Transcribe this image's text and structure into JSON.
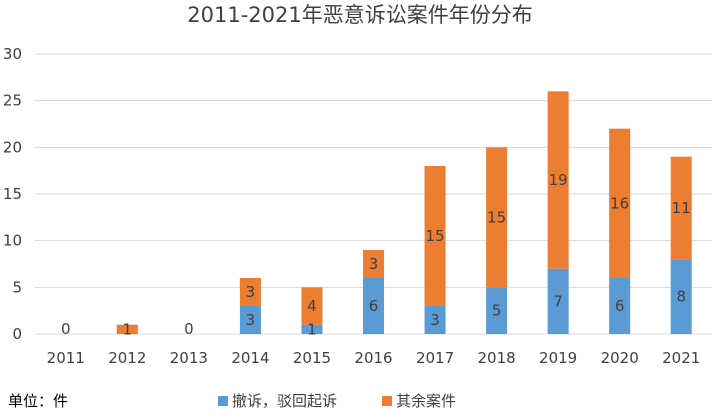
{
  "chart_data": {
    "type": "bar",
    "stacked": true,
    "title": "2011-2021年恶意诉讼案件年份分布",
    "unit_note": "单位：件",
    "categories": [
      "2011",
      "2012",
      "2013",
      "2014",
      "2015",
      "2016",
      "2017",
      "2018",
      "2019",
      "2020",
      "2021"
    ],
    "series": [
      {
        "name": "撤诉，驳回起诉",
        "color": "#5b9bd5",
        "values": [
          0,
          0,
          0,
          3,
          1,
          6,
          3,
          5,
          7,
          6,
          8
        ]
      },
      {
        "name": "其余案件",
        "color": "#ed7d31",
        "values": [
          0,
          1,
          0,
          3,
          4,
          3,
          15,
          15,
          19,
          16,
          11
        ]
      }
    ],
    "data_labels": {
      "series0": [
        "0",
        "",
        "0",
        "3",
        "1",
        "6",
        "3",
        "5",
        "7",
        "6",
        "8"
      ],
      "series1": [
        "",
        "1",
        "",
        "3",
        "4",
        "3",
        "15",
        "15",
        "19",
        "16",
        "11"
      ]
    },
    "ylim": [
      0,
      30
    ],
    "yticks": [
      0,
      5,
      10,
      15,
      20,
      25,
      30
    ],
    "grid": true,
    "legend_position": "bottom"
  }
}
